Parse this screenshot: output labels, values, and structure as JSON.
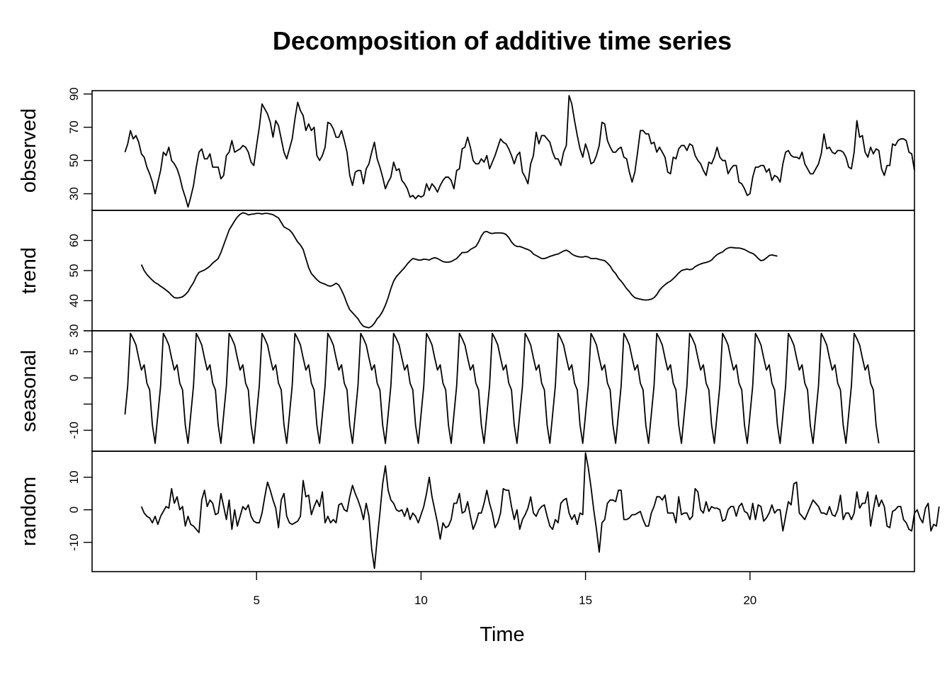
{
  "chart_data": {
    "type": "line",
    "title": "Decomposition of additive time series",
    "xlabel": "Time",
    "xlim": [
      0,
      25
    ],
    "xticks": [
      5,
      10,
      15,
      20
    ],
    "x_start": 1,
    "frequency": 12,
    "panels": [
      {
        "name": "observed",
        "ylim": [
          20,
          92
        ],
        "yticks": [
          30,
          50,
          70,
          90
        ],
        "x_start": 1.0,
        "values": [
          55,
          60,
          68,
          63,
          65,
          61,
          54,
          52,
          46,
          42,
          37,
          30,
          37,
          44,
          55,
          53,
          58,
          50,
          48,
          45,
          40,
          33,
          28,
          22,
          28,
          35,
          46,
          55,
          57,
          51,
          51,
          54,
          46,
          46,
          46,
          39,
          41,
          53,
          55,
          62,
          55,
          56,
          57,
          59,
          58,
          55,
          49,
          47,
          59,
          70,
          84,
          81,
          78,
          73,
          64,
          74,
          71,
          63,
          55,
          51,
          57,
          63,
          75,
          85,
          80,
          77,
          68,
          72,
          68,
          70,
          53,
          50,
          53,
          58,
          73,
          72,
          69,
          64,
          64,
          68,
          62,
          55,
          41,
          35,
          43,
          44,
          44,
          36,
          45,
          48,
          55,
          61,
          51,
          46,
          40,
          33,
          37,
          40,
          49,
          44,
          45,
          38,
          36,
          33,
          28,
          29,
          27,
          29,
          28,
          29,
          36,
          32,
          36,
          34,
          31,
          35,
          38,
          40,
          40,
          38,
          33,
          44,
          45,
          57,
          58,
          64,
          58,
          50,
          48,
          48,
          51,
          49,
          53,
          45,
          49,
          53,
          58,
          63,
          61,
          60,
          57,
          53,
          48,
          53,
          55,
          43,
          40,
          36,
          48,
          53,
          67,
          60,
          65,
          65,
          63,
          61,
          55,
          51,
          51,
          47,
          55,
          59,
          89,
          84,
          74,
          65,
          57,
          52,
          60,
          55,
          48,
          49,
          53,
          59,
          73,
          72,
          62,
          58,
          55,
          55,
          57,
          58,
          52,
          51,
          43,
          37,
          43,
          55,
          68,
          68,
          66,
          66,
          60,
          61,
          55,
          58,
          55,
          52,
          43,
          42,
          52,
          51,
          57,
          59,
          59,
          56,
          60,
          59,
          53,
          50,
          48,
          44,
          41,
          49,
          48,
          52,
          58,
          52,
          50,
          50,
          42,
          45,
          47,
          47,
          37,
          36,
          33,
          29,
          30,
          40,
          46,
          46,
          47,
          47,
          43,
          45,
          38,
          41,
          40,
          37,
          48,
          55,
          56,
          53,
          52,
          52,
          51,
          55,
          48,
          45,
          42,
          42,
          45,
          48,
          54,
          66,
          57,
          58,
          55,
          54,
          56,
          56,
          55,
          52,
          46,
          45,
          55,
          74,
          64,
          65,
          55,
          52,
          58,
          54,
          57,
          56,
          45,
          41,
          47,
          47,
          60,
          59,
          62,
          63,
          63,
          62,
          55,
          54,
          44
        ]
      },
      {
        "name": "trend",
        "ylim": [
          30,
          70
        ],
        "yticks": [
          30,
          40,
          50,
          60
        ],
        "x_start": 1.5,
        "values": [
          52.0,
          50.0,
          48.7,
          47.7,
          46.8,
          46.0,
          45.5,
          44.8,
          44.2,
          43.5,
          42.8,
          41.8,
          41.0,
          40.9,
          41.0,
          41.3,
          42.0,
          43.0,
          44.6,
          46.0,
          48.0,
          49.4,
          49.8,
          50.2,
          50.8,
          51.5,
          52.5,
          53.2,
          54.0,
          56.0,
          58.5,
          61.0,
          63.5,
          65.0,
          66.5,
          67.8,
          68.7,
          69.2,
          69.0,
          68.5,
          68.7,
          68.8,
          69.0,
          69.0,
          68.8,
          69.0,
          69.0,
          68.8,
          68.6,
          68.0,
          67.5,
          66.0,
          64.5,
          64.0,
          63.5,
          62.5,
          61.0,
          59.5,
          58.5,
          57.0,
          54.0,
          51.0,
          49.0,
          48.0,
          47.0,
          46.2,
          45.8,
          45.5,
          45.0,
          44.8,
          45.2,
          45.8,
          45.2,
          43.5,
          41.5,
          39.0,
          37.0,
          36.0,
          35.0,
          34.0,
          32.5,
          31.5,
          31.2,
          31.0,
          31.5,
          32.5,
          34.0,
          35.0,
          36.5,
          38.5,
          41.0,
          44.0,
          46.5,
          48.0,
          49.0,
          50.0,
          51.0,
          52.2,
          53.2,
          54.0,
          53.8,
          53.5,
          53.5,
          53.8,
          53.7,
          53.5,
          54.0,
          54.3,
          54.0,
          53.5,
          53.0,
          52.8,
          52.8,
          53.0,
          53.5,
          54.0,
          55.0,
          56.0,
          56.0,
          56.2,
          57.0,
          57.5,
          58.0,
          59.5,
          61.5,
          62.8,
          63.0,
          62.5,
          62.3,
          62.5,
          62.5,
          62.5,
          62.4,
          62.0,
          61.0,
          59.5,
          58.5,
          58.0,
          58.0,
          57.7,
          57.3,
          57.0,
          56.5,
          55.5,
          55.0,
          54.5,
          54.0,
          54.0,
          54.3,
          54.7,
          55.0,
          55.3,
          55.5,
          56.0,
          56.5,
          56.8,
          56.3,
          55.5,
          55.0,
          54.7,
          54.5,
          54.5,
          54.7,
          54.5,
          54.0,
          54.0,
          54.0,
          53.7,
          53.5,
          53.3,
          52.5,
          51.5,
          50.0,
          49.0,
          47.5,
          46.5,
          45.3,
          44.0,
          43.0,
          41.8,
          41.0,
          40.7,
          40.5,
          40.3,
          40.2,
          40.3,
          40.5,
          41.0,
          42.0,
          43.5,
          44.5,
          45.3,
          46.0,
          46.5,
          47.3,
          48.2,
          49.2,
          50.0,
          50.3,
          50.5,
          50.3,
          50.5,
          51.3,
          51.8,
          52.2,
          52.5,
          52.7,
          53.0,
          53.5,
          54.5,
          55.3,
          55.8,
          56.2,
          57.0,
          57.5,
          57.7,
          57.6,
          57.5,
          57.5,
          57.3,
          57.0,
          56.5,
          56.0,
          55.7,
          55.0,
          54.0,
          53.3,
          53.5,
          54.2,
          55.0,
          55.2,
          55.0,
          54.8
        ]
      },
      {
        "name": "seasonal",
        "ylim": [
          -14,
          9
        ],
        "yticks": [
          -10,
          0,
          5
        ],
        "ytick_extra": [
          -5,
          9
        ],
        "x_start": 1.0,
        "cycle": [
          -7.0,
          -1.5,
          8.5,
          7.5,
          6.3,
          3.8,
          1.5,
          2.5,
          -1.0,
          -2.3,
          -9.0,
          -12.5
        ],
        "cycles": 23
      },
      {
        "name": "random",
        "ylim": [
          -19,
          18
        ],
        "yticks": [
          -10,
          0,
          10
        ],
        "x_start": 1.5,
        "values": [
          1,
          -1,
          -2,
          -2.5,
          -4,
          -2,
          -4.5,
          -2,
          -0.5,
          1,
          0.5,
          6.5,
          2,
          4,
          0,
          1,
          -5,
          -2,
          -4.5,
          -5,
          -6,
          -7,
          3,
          6,
          1,
          3,
          2,
          -1.5,
          -1,
          5,
          1,
          -3,
          3,
          -6,
          0,
          -5,
          -2,
          1,
          0,
          1.5,
          -2,
          -3.5,
          -4,
          -4,
          -1,
          4,
          8.5,
          6,
          3,
          0.5,
          -5.5,
          3,
          5,
          -2,
          -4,
          -4.5,
          -4,
          -3.5,
          -2,
          9,
          4,
          4.5,
          -1.5,
          1,
          3,
          1,
          5.5,
          -4,
          -2,
          -4,
          -3,
          -4,
          1.5,
          2,
          0,
          -0.5,
          4,
          7.5,
          5,
          3,
          0.5,
          -3,
          2,
          -2,
          -12,
          -18,
          -9,
          -1,
          8,
          13.5,
          6,
          3,
          2,
          0,
          -0.5,
          0,
          -2,
          0.5,
          -3,
          -1,
          -2,
          -4,
          -1.5,
          1,
          5,
          10,
          4,
          0,
          -4,
          -9,
          -4,
          -5.5,
          -5,
          -3,
          2,
          2,
          5,
          -1,
          -0.5,
          2.5,
          -2,
          -6,
          -4,
          -1,
          -1,
          2,
          6,
          2,
          -1,
          -5.5,
          -4,
          -1,
          6.5,
          6,
          6,
          1,
          -3,
          0,
          -6,
          -3,
          -1.5,
          0.5,
          4,
          -1,
          -2,
          0,
          1,
          1.5,
          -2,
          -5,
          -6,
          -3,
          -4,
          2,
          3,
          3.5,
          -1,
          -3,
          -1.5,
          -4.5,
          -1,
          -1.5,
          17.5,
          13,
          7,
          0,
          -6,
          -13,
          -4,
          -3,
          2,
          3,
          3,
          2.5,
          6,
          6,
          -3,
          -3,
          -2.5,
          -1.5,
          -1.5,
          -1,
          -0.5,
          -3,
          -5,
          -5,
          -1,
          1,
          4,
          4,
          3,
          4.5,
          -1,
          -1,
          -1,
          -4,
          4,
          -1.5,
          -1,
          -1,
          -3,
          -2,
          6.5,
          5.5,
          0,
          -1,
          2.5,
          -0.5,
          1,
          0.5,
          0.5,
          0,
          -3.5,
          -3,
          0,
          1,
          1,
          -2,
          1,
          2,
          -0.5,
          -1,
          -3,
          2,
          -3,
          1.5,
          1,
          -3.5,
          -2.5,
          -1,
          1.5,
          -1,
          0,
          0,
          -6.5,
          -2,
          2.5,
          1.5,
          8,
          8.5,
          -1,
          -2,
          -3,
          -1,
          1,
          3,
          2,
          1,
          -1,
          -1,
          -1.5,
          1,
          -1.5,
          -2,
          0,
          4.5,
          -3,
          -1,
          -1,
          -3,
          -1,
          5.5,
          0.5,
          2,
          2,
          5.5,
          -5,
          0,
          4.5,
          1,
          3,
          1,
          -5,
          -5.5,
          -0.5,
          0,
          1,
          1,
          -3,
          -4,
          -6,
          -6.5,
          -1,
          0,
          -2.5,
          -4,
          0.5,
          2,
          -6.5,
          -4.5,
          -5,
          1
        ]
      }
    ]
  }
}
